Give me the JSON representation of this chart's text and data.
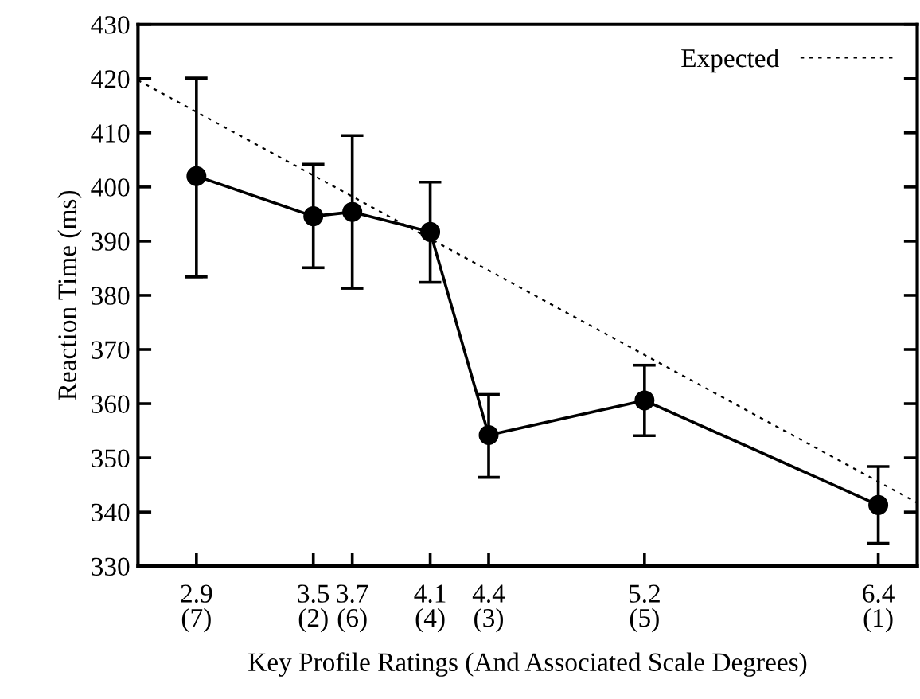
{
  "chart_data": {
    "type": "line",
    "xlabel": "Key Profile Ratings (And Associated Scale Degrees)",
    "ylabel": "Reaction Time (ms)",
    "xlim": [
      2.6,
      6.6
    ],
    "ylim": [
      330,
      430
    ],
    "xticks": [
      2.9,
      3.5,
      3.7,
      4.1,
      4.4,
      5.2,
      6.4
    ],
    "annotations": [
      "(7)",
      "(2)",
      "(6)",
      "(4)",
      "(3)",
      "(5)",
      "(1)"
    ],
    "yticks": [
      330,
      340,
      350,
      360,
      370,
      380,
      390,
      400,
      410,
      420,
      430
    ],
    "grid": false,
    "legend": "top right",
    "series": [
      {
        "color": "#000000",
        "marker": "circle",
        "line_style": "solid",
        "x": [
          2.9,
          3.5,
          3.7,
          4.1,
          4.4,
          5.2,
          6.4
        ],
        "values": [
          402,
          394.6,
          395.4,
          391.7,
          354.2,
          360.6,
          341.3
        ],
        "errors": [
          [
            383.4,
            420.1
          ],
          [
            385.1,
            404.2
          ],
          [
            381.3,
            409.5
          ],
          [
            382.4,
            400.9
          ],
          [
            346.4,
            361.7
          ],
          [
            354.1,
            367.1
          ],
          [
            334.2,
            348.4
          ]
        ]
      },
      {
        "name": "Expected",
        "color": "#000000",
        "marker": "none",
        "line_style": "dotted",
        "x": [
          2.6,
          6.6
        ],
        "values": [
          419.7,
          341.7
        ]
      }
    ]
  }
}
